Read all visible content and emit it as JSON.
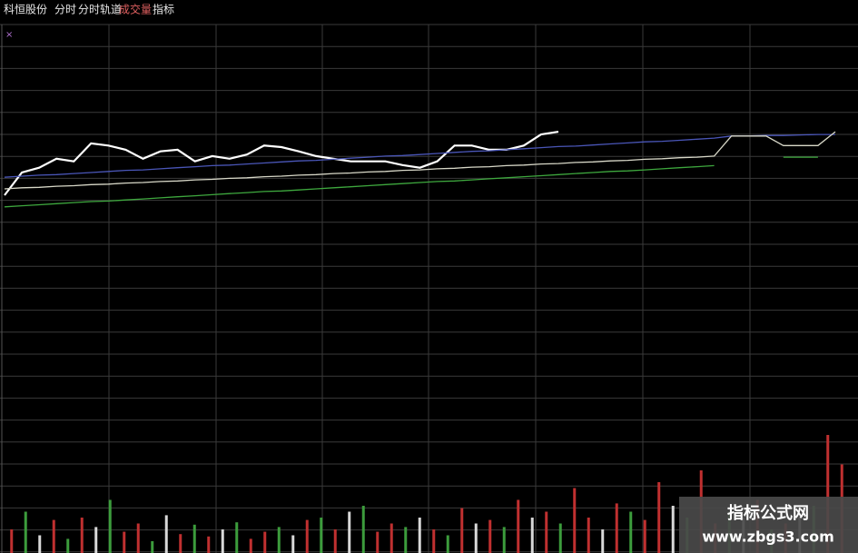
{
  "toolbar": [
    "科恒股份",
    "分时",
    "分时轨道",
    "成交量",
    "指标"
  ],
  "marker": "×",
  "watermark": {
    "title": "指标公式网",
    "url": "www.zbgs3.com"
  },
  "chart_data": [
    {
      "type": "line",
      "x": [
        0,
        5,
        10,
        15,
        20,
        25,
        30,
        35,
        40,
        45,
        50,
        55,
        60,
        65,
        70,
        75,
        80,
        85,
        90,
        95,
        100,
        105,
        110,
        115,
        120,
        125,
        130,
        135,
        140,
        145,
        150,
        155,
        160,
        165,
        170,
        175,
        180,
        185,
        190,
        195,
        200,
        205,
        210,
        215,
        220,
        225,
        230,
        235,
        240
      ],
      "xlim": [
        0,
        240
      ],
      "ylim": [
        0,
        100
      ],
      "series": [
        {
          "name": "price",
          "color": "#ffffff",
          "values": [
            67.7,
            72.0,
            72.9,
            74.6,
            74.1,
            77.5,
            77.1,
            76.3,
            74.6,
            76.0,
            76.3,
            74.1,
            75.1,
            74.6,
            75.4,
            77.1,
            76.8,
            76.0,
            75.1,
            74.6,
            74.1,
            74.1,
            74.1,
            73.4,
            72.9,
            74.1,
            77.1,
            77.1,
            76.3,
            76.3,
            77.1,
            79.2,
            79.7,
            null,
            null,
            null,
            null,
            null,
            null,
            null,
            null,
            null,
            null,
            null,
            null,
            null,
            null,
            null,
            null
          ]
        },
        {
          "name": "upper",
          "color": "#4a56b8",
          "values": [
            71.1,
            71.3,
            71.5,
            71.6,
            71.8,
            72.0,
            72.2,
            72.4,
            72.5,
            72.7,
            72.9,
            73.1,
            73.3,
            73.4,
            73.6,
            73.8,
            74.0,
            74.2,
            74.3,
            74.5,
            74.7,
            74.9,
            75.1,
            75.2,
            75.4,
            75.6,
            75.8,
            76.0,
            76.1,
            76.3,
            76.5,
            76.7,
            76.9,
            77.0,
            77.2,
            77.4,
            77.6,
            77.8,
            77.9,
            78.1,
            78.3,
            78.5,
            78.9,
            78.9,
            79.0,
            79.0,
            79.1,
            79.2,
            79.2
          ]
        },
        {
          "name": "middle",
          "color": "#d8d8c8",
          "values": [
            68.9,
            69.1,
            69.2,
            69.4,
            69.5,
            69.7,
            69.8,
            70.0,
            70.1,
            70.3,
            70.4,
            70.6,
            70.7,
            70.9,
            71.0,
            71.2,
            71.3,
            71.5,
            71.6,
            71.8,
            71.9,
            72.1,
            72.2,
            72.4,
            72.5,
            72.7,
            72.8,
            73.0,
            73.1,
            73.3,
            73.4,
            73.6,
            73.7,
            73.9,
            74.0,
            74.2,
            74.3,
            74.5,
            74.6,
            74.8,
            74.9,
            75.1,
            78.9,
            78.9,
            78.9,
            77.1,
            77.1,
            77.1,
            79.7
          ]
        },
        {
          "name": "lower",
          "color": "#3ea83e",
          "values": [
            65.5,
            65.7,
            65.9,
            66.1,
            66.3,
            66.5,
            66.6,
            66.8,
            67.0,
            67.2,
            67.4,
            67.6,
            67.8,
            68.0,
            68.2,
            68.4,
            68.5,
            68.7,
            68.9,
            69.1,
            69.3,
            69.5,
            69.7,
            69.9,
            70.1,
            70.3,
            70.4,
            70.6,
            70.8,
            71.0,
            71.2,
            71.4,
            71.6,
            71.8,
            72.0,
            72.2,
            72.3,
            72.5,
            72.7,
            72.9,
            73.1,
            73.3,
            null,
            null,
            null,
            74.9,
            74.9,
            74.9,
            null
          ]
        }
      ]
    },
    {
      "type": "bar",
      "ylim": [
        0,
        100
      ],
      "values": [
        20,
        35,
        15,
        28,
        12,
        30,
        22,
        45,
        18,
        25,
        10,
        32,
        16,
        24,
        14,
        20,
        26,
        12,
        18,
        22,
        15,
        28,
        30,
        20,
        35,
        40,
        18,
        25,
        22,
        30,
        20,
        15,
        38,
        25,
        28,
        22,
        45,
        30,
        35,
        25,
        55,
        30,
        20,
        42,
        35,
        28,
        60,
        40,
        30,
        70,
        25,
        35,
        30,
        45,
        20,
        25,
        30,
        40,
        100,
        75
      ],
      "colors": [
        "#c03030",
        "#3c9c3c",
        "#d8d8d8",
        "#c03030",
        "#3c9c3c",
        "#c03030",
        "#d8d8d8",
        "#3c9c3c",
        "#c03030",
        "#c03030",
        "#3c9c3c",
        "#d8d8d8",
        "#c03030",
        "#3c9c3c",
        "#c03030",
        "#d8d8d8",
        "#3c9c3c",
        "#c03030",
        "#c03030",
        "#3c9c3c",
        "#d8d8d8",
        "#c03030",
        "#3c9c3c",
        "#c03030",
        "#d8d8d8",
        "#3c9c3c",
        "#c03030",
        "#c03030",
        "#3c9c3c",
        "#d8d8d8",
        "#c03030",
        "#3c9c3c",
        "#c03030",
        "#d8d8d8",
        "#c03030",
        "#3c9c3c",
        "#c03030",
        "#d8d8d8",
        "#c03030",
        "#3c9c3c",
        "#c03030",
        "#c03030",
        "#d8d8d8",
        "#c03030",
        "#3c9c3c",
        "#c03030",
        "#c03030",
        "#d8d8d8",
        "#3c9c3c",
        "#c03030",
        "#c03030",
        "#3c9c3c",
        "#d8d8d8",
        "#c03030",
        "#3c9c3c",
        "#c03030",
        "#d8d8d8",
        "#3c9c3c",
        "#c03030",
        "#c03030"
      ]
    }
  ]
}
